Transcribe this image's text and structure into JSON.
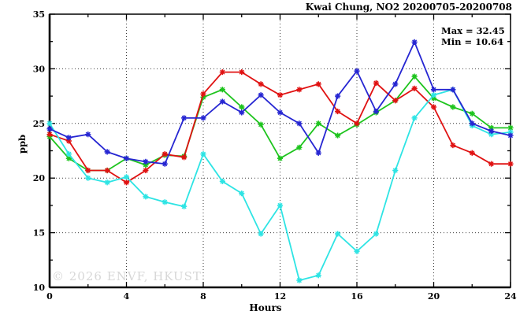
{
  "header": {
    "title": "Kwai Chung, NO2 20200705-20200708"
  },
  "annotation": {
    "max_label": "Max = 32.45",
    "min_label": "Min = 10.64"
  },
  "watermark": "© 2026 ENVF, HKUST",
  "chart_data": {
    "type": "line",
    "title": "Kwai Chung, NO2 20200705-20200708",
    "xlabel": "Hours",
    "ylabel": "ppb",
    "xlim": [
      0,
      24
    ],
    "ylim": [
      10,
      35
    ],
    "x_major_ticks": [
      0,
      4,
      8,
      12,
      16,
      20,
      24
    ],
    "x_minor_ticks": [
      2,
      6,
      10,
      14,
      18,
      22
    ],
    "x_gridlines": [
      4,
      8,
      12,
      16,
      20
    ],
    "y_major_ticks": [
      10,
      15,
      20,
      25,
      30,
      35
    ],
    "y_minor_ticks": [
      12.5,
      17.5,
      22.5,
      27.5,
      32.5
    ],
    "y_gridlines": [
      15,
      20,
      25,
      30
    ],
    "grid": true,
    "legend": "none",
    "marker": "star",
    "stats": {
      "max": 32.45,
      "min": 10.64
    },
    "x": [
      0,
      1,
      2,
      3,
      4,
      5,
      6,
      7,
      8,
      9,
      10,
      11,
      12,
      13,
      14,
      15,
      16,
      17,
      18,
      19,
      20,
      21,
      22,
      23,
      24
    ],
    "series": [
      {
        "name": "green",
        "color": "#1ec41e",
        "values": [
          23.8,
          21.8,
          20.7,
          20.7,
          21.8,
          21.2,
          22.1,
          22.0,
          27.4,
          28.1,
          26.5,
          24.9,
          21.8,
          22.8,
          25.0,
          23.9,
          24.9,
          26.0,
          27.1,
          29.3,
          27.3,
          26.5,
          25.9,
          24.6,
          24.6
        ]
      },
      {
        "name": "red",
        "color": "#e01212",
        "values": [
          24.0,
          23.4,
          20.7,
          20.7,
          19.6,
          20.7,
          22.2,
          21.9,
          27.7,
          29.7,
          29.7,
          28.6,
          27.6,
          28.1,
          28.6,
          26.1,
          25.0,
          28.7,
          27.1,
          28.2,
          26.5,
          23.0,
          22.3,
          21.3,
          21.3
        ]
      },
      {
        "name": "cyan",
        "color": "#2ee4e4",
        "values": [
          25.0,
          22.2,
          20.0,
          19.6,
          20.1,
          18.3,
          17.8,
          17.4,
          22.2,
          19.7,
          18.6,
          14.9,
          17.5,
          10.64,
          11.1,
          14.9,
          13.3,
          14.9,
          20.7,
          25.5,
          27.6,
          28.1,
          24.8,
          24.0,
          24.2
        ]
      },
      {
        "name": "blue",
        "color": "#2626d2",
        "values": [
          24.5,
          23.7,
          24.0,
          22.4,
          21.8,
          21.5,
          21.3,
          25.5,
          25.5,
          27.0,
          26.0,
          27.6,
          26.0,
          25.0,
          22.3,
          27.5,
          29.8,
          26.1,
          28.6,
          32.45,
          28.1,
          28.1,
          25.0,
          24.3,
          23.9
        ]
      }
    ]
  }
}
